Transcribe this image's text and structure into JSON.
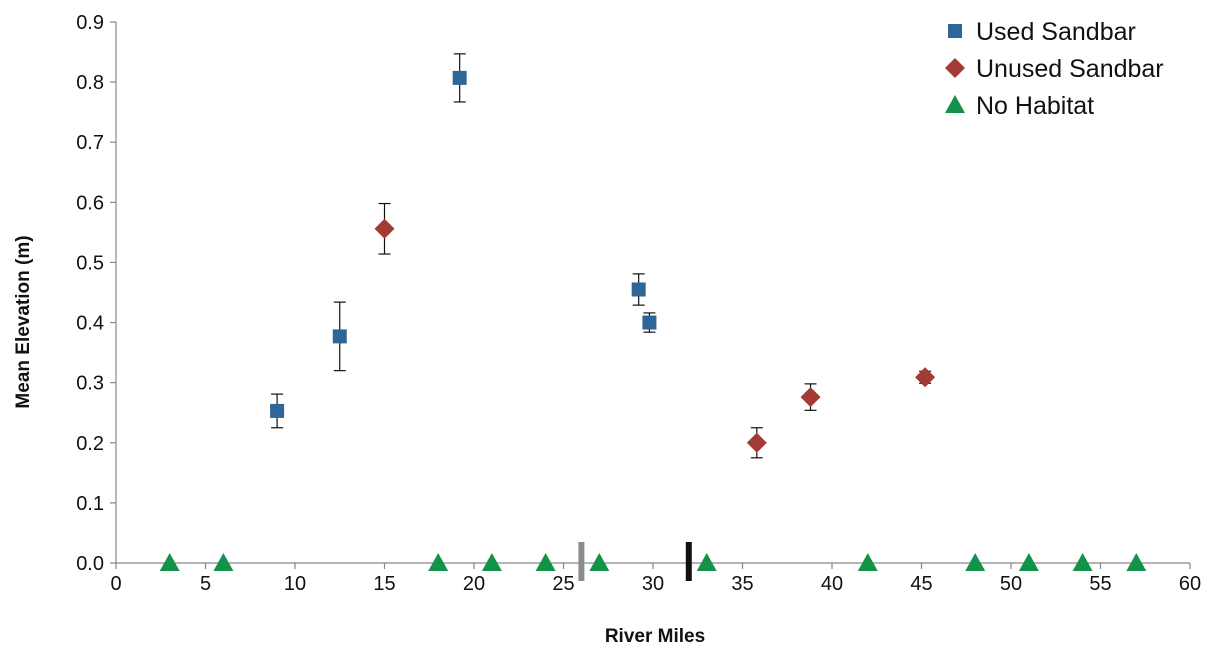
{
  "chart_data": {
    "type": "scatter",
    "title": "",
    "xlabel": "River Miles",
    "ylabel": "Mean Elevation (m)",
    "xlim": [
      0,
      60
    ],
    "ylim": [
      0,
      0.9
    ],
    "x_ticks": [
      "0",
      "5",
      "10",
      "15",
      "20",
      "25",
      "30",
      "35",
      "40",
      "45",
      "50",
      "55",
      "60"
    ],
    "y_ticks": [
      "0.0",
      "0.1",
      "0.2",
      "0.3",
      "0.4",
      "0.5",
      "0.6",
      "0.7",
      "0.8",
      "0.9"
    ],
    "grid": false,
    "legend_position": "top-right",
    "series": [
      {
        "name": "Used Sandbar",
        "marker": "square",
        "color": "#2E6797",
        "points": [
          {
            "x": 9.0,
            "y": 0.253,
            "err": 0.028
          },
          {
            "x": 12.5,
            "y": 0.377,
            "err": 0.057
          },
          {
            "x": 19.2,
            "y": 0.807,
            "err": 0.04
          },
          {
            "x": 29.2,
            "y": 0.455,
            "err": 0.026
          },
          {
            "x": 29.8,
            "y": 0.4,
            "err": 0.016
          }
        ]
      },
      {
        "name": "Unused Sandbar",
        "marker": "diamond",
        "color": "#A33B35",
        "points": [
          {
            "x": 15.0,
            "y": 0.556,
            "err": 0.042
          },
          {
            "x": 35.8,
            "y": 0.2,
            "err": 0.025
          },
          {
            "x": 38.8,
            "y": 0.276,
            "err": 0.022
          },
          {
            "x": 45.2,
            "y": 0.309,
            "err": 0.01
          }
        ]
      },
      {
        "name": "No Habitat",
        "marker": "triangle",
        "color": "#13934A",
        "points": [
          {
            "x": 3,
            "y": 0
          },
          {
            "x": 6,
            "y": 0
          },
          {
            "x": 18,
            "y": 0
          },
          {
            "x": 21,
            "y": 0
          },
          {
            "x": 24,
            "y": 0
          },
          {
            "x": 27,
            "y": 0
          },
          {
            "x": 33,
            "y": 0
          },
          {
            "x": 42,
            "y": 0
          },
          {
            "x": 48,
            "y": 0
          },
          {
            "x": 51,
            "y": 0
          },
          {
            "x": 54,
            "y": 0
          },
          {
            "x": 57,
            "y": 0
          }
        ]
      }
    ],
    "vertical_markers": [
      {
        "x": 26,
        "color": "#8C8C8C"
      },
      {
        "x": 32,
        "color": "#111111"
      }
    ]
  }
}
